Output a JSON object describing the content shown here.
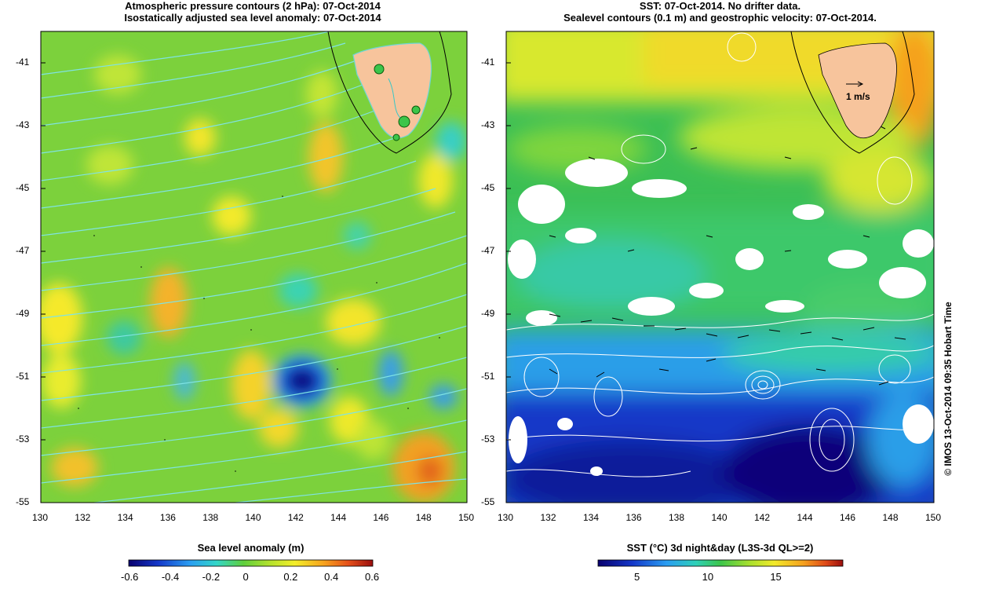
{
  "left_panel": {
    "title_line1": "Atmospheric pressure contours (2 hPa): 07-Oct-2014",
    "title_line2": "Isostatically adjusted sea level anomaly: 07-Oct-2014",
    "colorbar": {
      "title": "Sea level anomaly (m)",
      "ticks": [
        "-0.6",
        "-0.4",
        "-0.2",
        "0",
        "0.2",
        "0.4",
        "0.6"
      ],
      "range": [
        -0.6,
        0.6
      ]
    }
  },
  "right_panel": {
    "title_line1": "SST: 07-Oct-2014. No drifter data.",
    "title_line2": "Sealevel contours (0.1 m) and geostrophic velocity: 07-Oct-2014.",
    "velocity_scale_label": "1 m/s",
    "colorbar": {
      "title": "SST (°C) 3d night&day (L3S-3d QL>=2)",
      "ticks": [
        "5",
        "10",
        "15"
      ],
      "range": [
        2,
        20
      ]
    }
  },
  "axes": {
    "lon_ticks": [
      "130",
      "132",
      "134",
      "136",
      "138",
      "140",
      "142",
      "144",
      "146",
      "148",
      "150"
    ],
    "lat_ticks": [
      "-41",
      "-43",
      "-45",
      "-47",
      "-49",
      "-51",
      "-53",
      "-55"
    ],
    "lon_range": [
      130,
      150
    ],
    "lat_range": [
      -55,
      -40
    ]
  },
  "copyright": "© IMOS 13-Oct-2014 09:35 Hobart Time",
  "colors": {
    "land": "#f7c49c",
    "sla_background": "#7cd13c",
    "pressure_contour": "#7fe3e3",
    "sst_contour": "#ffffff"
  }
}
